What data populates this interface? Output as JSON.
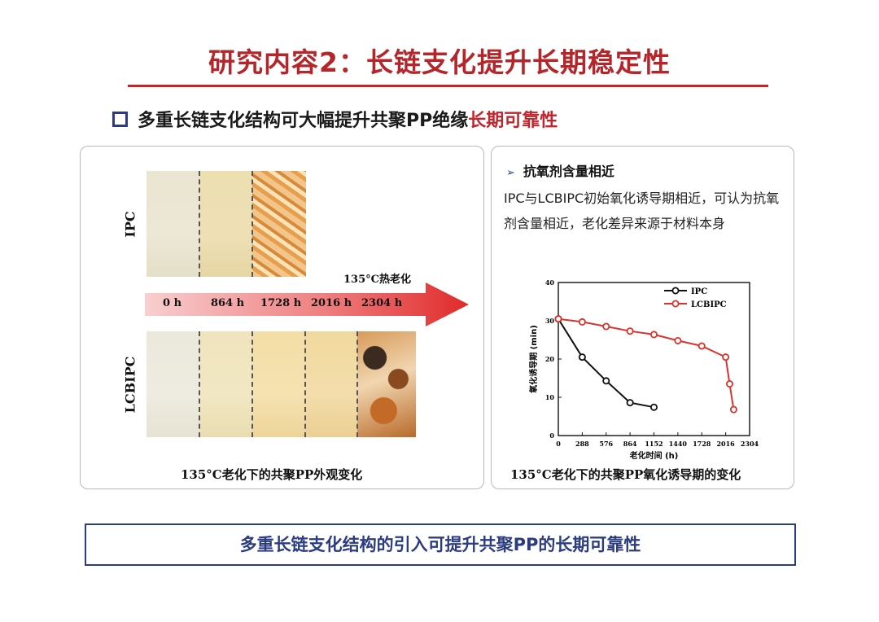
{
  "title": "研究内容2：长链支化提升长期稳定性",
  "subheading": {
    "text": "多重长链支化结构可大幅提升共聚PP绝缘",
    "highlight": "长期可靠性"
  },
  "left_panel": {
    "row_labels": [
      "IPC",
      "LCBIPC"
    ],
    "arrow_label": "135°C热老化",
    "time_labels": [
      "0 h",
      "864 h",
      "1728 h",
      "2016 h",
      "2304 h"
    ],
    "caption": "135°C老化下的共聚PP外观变化"
  },
  "right_panel": {
    "bullet": "抗氧剂含量相近",
    "body": "IPC与LCBIPC初始氧化诱导期相近，可认为抗氧剂含量相近，老化差异来源于材料本身",
    "caption": "135°C老化下的共聚PP氧化诱导期的变化"
  },
  "chart_data": {
    "type": "line",
    "xlabel": "老化时间 (h)",
    "ylabel": "氧化诱导期 (min)",
    "xlim": [
      0,
      2304
    ],
    "ylim": [
      0,
      40
    ],
    "xticks": [
      0,
      288,
      576,
      864,
      1152,
      1440,
      1728,
      2016,
      2304
    ],
    "yticks": [
      0,
      10,
      20,
      30,
      40
    ],
    "legend_position": "top-right",
    "series": [
      {
        "name": "IPC",
        "color": "#111111",
        "x": [
          0,
          288,
          576,
          864,
          1152
        ],
        "y": [
          30.5,
          20.5,
          14.3,
          8.6,
          7.4
        ]
      },
      {
        "name": "LCBIPC",
        "color": "#d9342b",
        "x": [
          0,
          288,
          576,
          864,
          1152,
          1440,
          1728,
          2016,
          2064,
          2112
        ],
        "y": [
          30.5,
          29.7,
          28.5,
          27.3,
          26.4,
          24.8,
          23.4,
          20.5,
          13.5,
          6.8
        ]
      }
    ]
  },
  "conclusion": "多重长链支化结构的引入可提升共聚PP的长期可靠性"
}
